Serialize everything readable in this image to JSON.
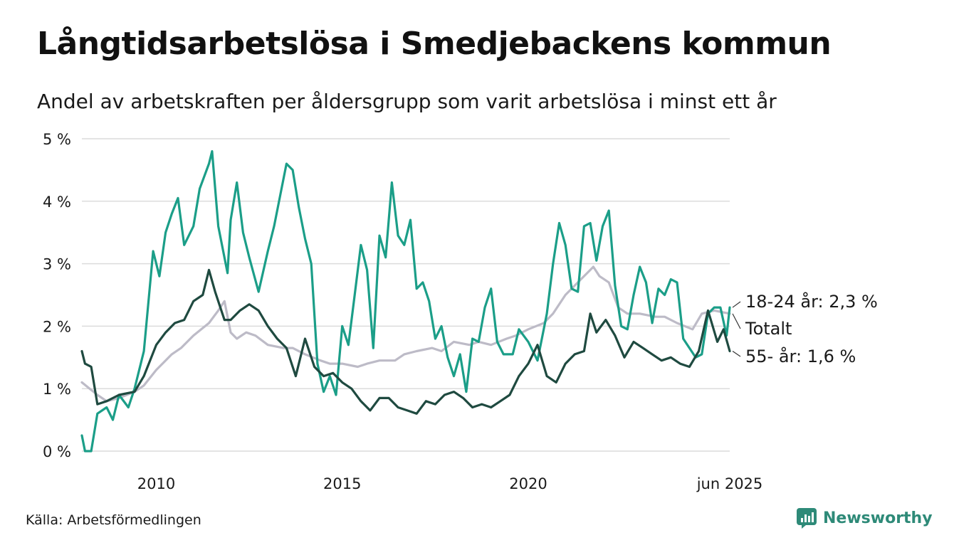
{
  "chart_data": {
    "type": "line",
    "title": "Långtidsarbetslösa i Smedjebackens kommun",
    "subtitle": "Andel av arbetskraften per åldersgrupp som varit arbetslösa i minst ett år",
    "source": "Källa: Arbetsförmedlingen",
    "brand": "Newsworthy",
    "ylim": [
      0,
      5
    ],
    "yticks": [
      {
        "value": 0,
        "label": "0 %"
      },
      {
        "value": 1,
        "label": "1 %"
      },
      {
        "value": 2,
        "label": "2 %"
      },
      {
        "value": 3,
        "label": "3 %"
      },
      {
        "value": 4,
        "label": "4 %"
      },
      {
        "value": 5,
        "label": "5 %"
      }
    ],
    "xlim": [
      "2008-01",
      "2025-06"
    ],
    "xticks": [
      {
        "value": "2010-01",
        "label": "2010"
      },
      {
        "value": "2015-01",
        "label": "2015"
      },
      {
        "value": "2020-01",
        "label": "2020"
      },
      {
        "value": "2025-06",
        "label": "jun 2025"
      }
    ],
    "grid": true,
    "legend": "end-labels",
    "series": [
      {
        "name": "Totalt",
        "end_label": "Totalt",
        "color": "#bdbbc7",
        "points": [
          [
            "2008-01",
            1.1
          ],
          [
            "2008-06",
            0.9
          ],
          [
            "2008-09",
            0.8
          ],
          [
            "2009-01",
            0.85
          ],
          [
            "2009-06",
            0.95
          ],
          [
            "2009-09",
            1.05
          ],
          [
            "2010-01",
            1.3
          ],
          [
            "2010-06",
            1.55
          ],
          [
            "2010-09",
            1.65
          ],
          [
            "2011-01",
            1.85
          ],
          [
            "2011-06",
            2.05
          ],
          [
            "2011-09",
            2.25
          ],
          [
            "2011-11",
            2.4
          ],
          [
            "2012-01",
            1.9
          ],
          [
            "2012-03",
            1.8
          ],
          [
            "2012-06",
            1.9
          ],
          [
            "2012-09",
            1.85
          ],
          [
            "2013-01",
            1.7
          ],
          [
            "2013-06",
            1.65
          ],
          [
            "2013-09",
            1.65
          ],
          [
            "2014-01",
            1.55
          ],
          [
            "2014-06",
            1.45
          ],
          [
            "2014-09",
            1.4
          ],
          [
            "2015-01",
            1.4
          ],
          [
            "2015-06",
            1.35
          ],
          [
            "2015-09",
            1.4
          ],
          [
            "2016-01",
            1.45
          ],
          [
            "2016-06",
            1.45
          ],
          [
            "2016-09",
            1.55
          ],
          [
            "2017-01",
            1.6
          ],
          [
            "2017-06",
            1.65
          ],
          [
            "2017-09",
            1.6
          ],
          [
            "2018-01",
            1.75
          ],
          [
            "2018-06",
            1.7
          ],
          [
            "2018-09",
            1.75
          ],
          [
            "2019-01",
            1.7
          ],
          [
            "2019-06",
            1.8
          ],
          [
            "2019-09",
            1.85
          ],
          [
            "2020-01",
            1.95
          ],
          [
            "2020-06",
            2.05
          ],
          [
            "2020-09",
            2.2
          ],
          [
            "2021-01",
            2.5
          ],
          [
            "2021-06",
            2.75
          ],
          [
            "2021-09",
            2.9
          ],
          [
            "2021-10",
            2.95
          ],
          [
            "2021-12",
            2.8
          ],
          [
            "2022-03",
            2.7
          ],
          [
            "2022-06",
            2.3
          ],
          [
            "2022-09",
            2.2
          ],
          [
            "2023-01",
            2.2
          ],
          [
            "2023-06",
            2.15
          ],
          [
            "2023-09",
            2.15
          ],
          [
            "2024-01",
            2.05
          ],
          [
            "2024-06",
            1.95
          ],
          [
            "2024-09",
            2.2
          ],
          [
            "2025-01",
            2.25
          ],
          [
            "2025-06",
            2.2
          ]
        ]
      },
      {
        "name": "18-24 år",
        "end_label": "18-24 år: 2,3 %",
        "color": "#1b9e88",
        "points": [
          [
            "2008-01",
            0.25
          ],
          [
            "2008-02",
            0.0
          ],
          [
            "2008-04",
            0.0
          ],
          [
            "2008-06",
            0.6
          ],
          [
            "2008-09",
            0.7
          ],
          [
            "2008-11",
            0.5
          ],
          [
            "2009-01",
            0.9
          ],
          [
            "2009-04",
            0.7
          ],
          [
            "2009-06",
            1.0
          ],
          [
            "2009-09",
            1.6
          ],
          [
            "2009-12",
            3.2
          ],
          [
            "2010-02",
            2.8
          ],
          [
            "2010-04",
            3.5
          ],
          [
            "2010-06",
            3.8
          ],
          [
            "2010-08",
            4.05
          ],
          [
            "2010-10",
            3.3
          ],
          [
            "2011-01",
            3.6
          ],
          [
            "2011-03",
            4.2
          ],
          [
            "2011-06",
            4.6
          ],
          [
            "2011-07",
            4.8
          ],
          [
            "2011-09",
            3.6
          ],
          [
            "2011-12",
            2.85
          ],
          [
            "2012-01",
            3.7
          ],
          [
            "2012-03",
            4.3
          ],
          [
            "2012-05",
            3.5
          ],
          [
            "2012-07",
            3.1
          ],
          [
            "2012-10",
            2.55
          ],
          [
            "2013-01",
            3.2
          ],
          [
            "2013-03",
            3.6
          ],
          [
            "2013-05",
            4.1
          ],
          [
            "2013-07",
            4.6
          ],
          [
            "2013-09",
            4.5
          ],
          [
            "2013-11",
            3.9
          ],
          [
            "2014-01",
            3.4
          ],
          [
            "2014-03",
            3.0
          ],
          [
            "2014-05",
            1.4
          ],
          [
            "2014-07",
            0.95
          ],
          [
            "2014-09",
            1.2
          ],
          [
            "2014-11",
            0.9
          ],
          [
            "2015-01",
            2.0
          ],
          [
            "2015-03",
            1.7
          ],
          [
            "2015-05",
            2.5
          ],
          [
            "2015-07",
            3.3
          ],
          [
            "2015-09",
            2.9
          ],
          [
            "2015-11",
            1.65
          ],
          [
            "2016-01",
            3.45
          ],
          [
            "2016-03",
            3.1
          ],
          [
            "2016-05",
            4.3
          ],
          [
            "2016-07",
            3.45
          ],
          [
            "2016-09",
            3.3
          ],
          [
            "2016-11",
            3.7
          ],
          [
            "2017-01",
            2.6
          ],
          [
            "2017-03",
            2.7
          ],
          [
            "2017-05",
            2.4
          ],
          [
            "2017-07",
            1.8
          ],
          [
            "2017-09",
            2.0
          ],
          [
            "2017-11",
            1.5
          ],
          [
            "2018-01",
            1.2
          ],
          [
            "2018-03",
            1.55
          ],
          [
            "2018-05",
            0.95
          ],
          [
            "2018-07",
            1.8
          ],
          [
            "2018-09",
            1.75
          ],
          [
            "2018-11",
            2.3
          ],
          [
            "2019-01",
            2.6
          ],
          [
            "2019-03",
            1.75
          ],
          [
            "2019-05",
            1.55
          ],
          [
            "2019-08",
            1.55
          ],
          [
            "2019-10",
            1.95
          ],
          [
            "2020-01",
            1.75
          ],
          [
            "2020-04",
            1.45
          ],
          [
            "2020-07",
            2.2
          ],
          [
            "2020-09",
            3.0
          ],
          [
            "2020-11",
            3.65
          ],
          [
            "2021-01",
            3.3
          ],
          [
            "2021-03",
            2.6
          ],
          [
            "2021-05",
            2.55
          ],
          [
            "2021-07",
            3.6
          ],
          [
            "2021-09",
            3.65
          ],
          [
            "2021-11",
            3.05
          ],
          [
            "2022-01",
            3.6
          ],
          [
            "2022-03",
            3.85
          ],
          [
            "2022-05",
            2.65
          ],
          [
            "2022-07",
            2.0
          ],
          [
            "2022-09",
            1.95
          ],
          [
            "2022-11",
            2.5
          ],
          [
            "2023-01",
            2.95
          ],
          [
            "2023-03",
            2.7
          ],
          [
            "2023-05",
            2.05
          ],
          [
            "2023-07",
            2.6
          ],
          [
            "2023-09",
            2.5
          ],
          [
            "2023-11",
            2.75
          ],
          [
            "2024-01",
            2.7
          ],
          [
            "2024-03",
            1.8
          ],
          [
            "2024-05",
            1.65
          ],
          [
            "2024-07",
            1.5
          ],
          [
            "2024-09",
            1.55
          ],
          [
            "2024-11",
            2.2
          ],
          [
            "2025-01",
            2.3
          ],
          [
            "2025-03",
            2.3
          ],
          [
            "2025-05",
            1.85
          ],
          [
            "2025-06",
            2.3
          ]
        ]
      },
      {
        "name": "55- år",
        "end_label": "55- år: 1,6 %",
        "color": "#1f4a40",
        "points": [
          [
            "2008-01",
            1.6
          ],
          [
            "2008-02",
            1.4
          ],
          [
            "2008-04",
            1.35
          ],
          [
            "2008-06",
            0.75
          ],
          [
            "2008-09",
            0.8
          ],
          [
            "2009-01",
            0.9
          ],
          [
            "2009-06",
            0.95
          ],
          [
            "2009-09",
            1.2
          ],
          [
            "2010-01",
            1.7
          ],
          [
            "2010-04",
            1.9
          ],
          [
            "2010-07",
            2.05
          ],
          [
            "2010-10",
            2.1
          ],
          [
            "2011-01",
            2.4
          ],
          [
            "2011-04",
            2.5
          ],
          [
            "2011-06",
            2.9
          ],
          [
            "2011-08",
            2.55
          ],
          [
            "2011-11",
            2.1
          ],
          [
            "2012-01",
            2.1
          ],
          [
            "2012-04",
            2.25
          ],
          [
            "2012-07",
            2.35
          ],
          [
            "2012-10",
            2.25
          ],
          [
            "2013-01",
            2.0
          ],
          [
            "2013-04",
            1.8
          ],
          [
            "2013-07",
            1.65
          ],
          [
            "2013-10",
            1.2
          ],
          [
            "2014-01",
            1.8
          ],
          [
            "2014-04",
            1.35
          ],
          [
            "2014-07",
            1.2
          ],
          [
            "2014-10",
            1.25
          ],
          [
            "2015-01",
            1.1
          ],
          [
            "2015-04",
            1.0
          ],
          [
            "2015-07",
            0.8
          ],
          [
            "2015-10",
            0.65
          ],
          [
            "2016-01",
            0.85
          ],
          [
            "2016-04",
            0.85
          ],
          [
            "2016-07",
            0.7
          ],
          [
            "2016-10",
            0.65
          ],
          [
            "2017-01",
            0.6
          ],
          [
            "2017-04",
            0.8
          ],
          [
            "2017-07",
            0.75
          ],
          [
            "2017-10",
            0.9
          ],
          [
            "2018-01",
            0.95
          ],
          [
            "2018-04",
            0.85
          ],
          [
            "2018-07",
            0.7
          ],
          [
            "2018-10",
            0.75
          ],
          [
            "2019-01",
            0.7
          ],
          [
            "2019-04",
            0.8
          ],
          [
            "2019-07",
            0.9
          ],
          [
            "2019-10",
            1.2
          ],
          [
            "2020-01",
            1.4
          ],
          [
            "2020-04",
            1.7
          ],
          [
            "2020-07",
            1.2
          ],
          [
            "2020-10",
            1.1
          ],
          [
            "2021-01",
            1.4
          ],
          [
            "2021-04",
            1.55
          ],
          [
            "2021-07",
            1.6
          ],
          [
            "2021-09",
            2.2
          ],
          [
            "2021-11",
            1.9
          ],
          [
            "2022-02",
            2.1
          ],
          [
            "2022-05",
            1.85
          ],
          [
            "2022-08",
            1.5
          ],
          [
            "2022-11",
            1.75
          ],
          [
            "2023-02",
            1.65
          ],
          [
            "2023-05",
            1.55
          ],
          [
            "2023-08",
            1.45
          ],
          [
            "2023-11",
            1.5
          ],
          [
            "2024-02",
            1.4
          ],
          [
            "2024-05",
            1.35
          ],
          [
            "2024-08",
            1.6
          ],
          [
            "2024-11",
            2.25
          ],
          [
            "2025-02",
            1.75
          ],
          [
            "2025-04",
            1.95
          ],
          [
            "2025-06",
            1.6
          ]
        ]
      }
    ]
  }
}
